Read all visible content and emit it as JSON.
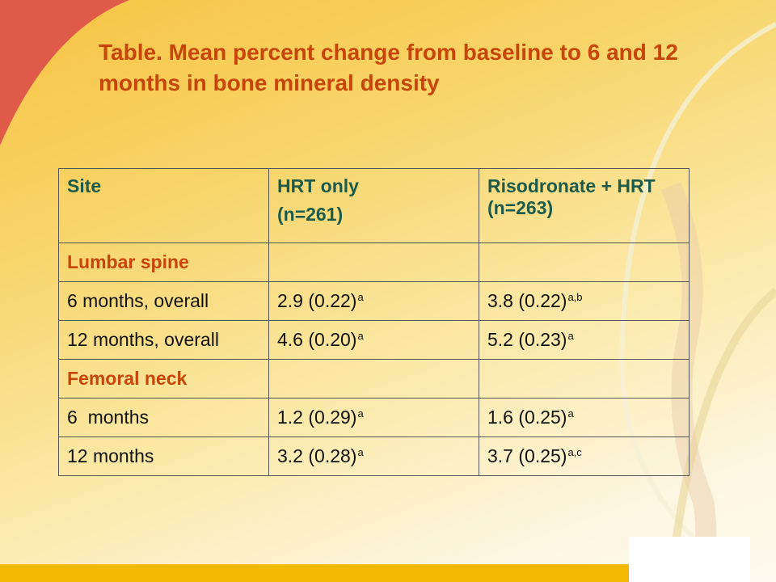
{
  "title": "Table. Mean percent change from baseline to 6 and 12 months in bone mineral density",
  "colors": {
    "title": "#c8450a",
    "header_text": "#1d5a4a",
    "accent_red": "#e05a4a",
    "bottom_bar": "#f3b800"
  },
  "table": {
    "header": {
      "site": "Site",
      "hrt_label": "HRT only",
      "hrt_n": "(n=261)",
      "ris_label": "Risodronate + HRT",
      "ris_n": "(n=263)"
    },
    "sections": [
      {
        "name": "Lumbar spine",
        "rows": [
          {
            "site": "6 months, overall",
            "hrt": "2.9 (0.22)",
            "hrt_sup": "a",
            "ris": "3.8 (0.22)",
            "ris_sup": "a,b"
          },
          {
            "site": "12 months, overall",
            "hrt": "4.6 (0.20)",
            "hrt_sup": "a",
            "ris": "5.2 (0.23)",
            "ris_sup": "a"
          }
        ]
      },
      {
        "name": "Femoral neck",
        "rows": [
          {
            "site": "6  months",
            "hrt": "1.2 (0.29)",
            "hrt_sup": "a",
            "ris": "1.6 (0.25)",
            "ris_sup": "a"
          },
          {
            "site": "12 months",
            "hrt": "3.2 (0.28)",
            "hrt_sup": "a",
            "ris": "3.7 (0.25)",
            "ris_sup": "a,c"
          }
        ]
      }
    ]
  }
}
